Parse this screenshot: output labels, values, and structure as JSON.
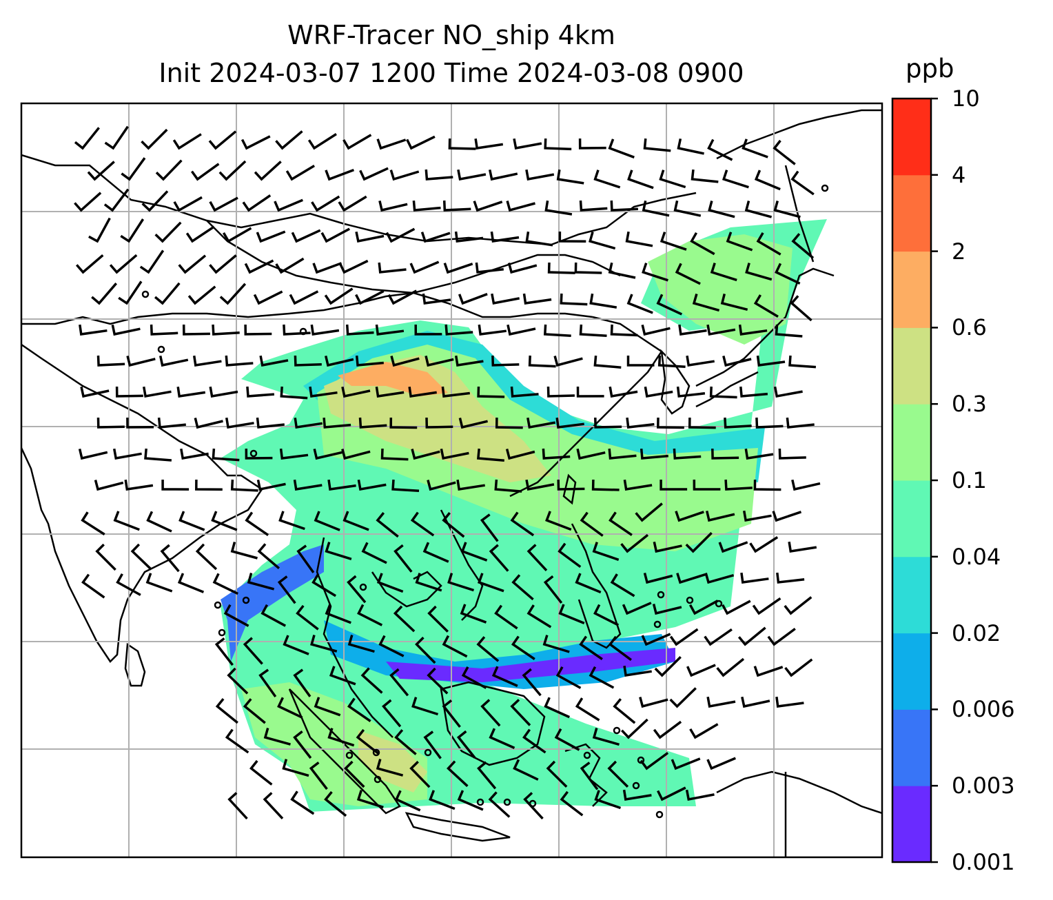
{
  "title": {
    "line1": "WRF-Tracer NO_ship 4km",
    "line2": "Init 2024-03-07 1200 Time 2024-03-08 0900"
  },
  "colorbar": {
    "unit": "ppb",
    "levels": [
      "0.001",
      "0.003",
      "0.006",
      "0.02",
      "0.04",
      "0.1",
      "0.3",
      "0.6",
      "2",
      "4",
      "10"
    ],
    "colors": [
      "#6a2bff",
      "#3875f7",
      "#0eaeea",
      "#2ddcd7",
      "#60f8b4",
      "#99fa8e",
      "#cde183",
      "#fdad62",
      "#fe6f3a",
      "#ff2e18"
    ]
  },
  "map": {
    "features": [
      "coastlines-icon",
      "country-borders-icon",
      "wind-barbs-icon",
      "lat-lon-gridlines-icon",
      "tracer-concentration-field-icon"
    ],
    "gridlines": true
  }
}
